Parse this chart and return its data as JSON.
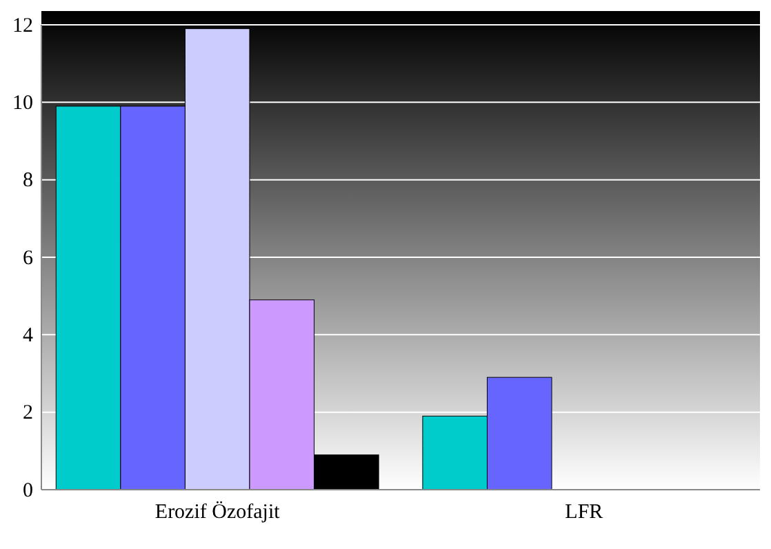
{
  "chart_data": {
    "type": "bar",
    "categories": [
      "Erozif Özofajit",
      "LFR"
    ],
    "series": [
      {
        "color": "#00cccc",
        "values": [
          9.9,
          1.9
        ]
      },
      {
        "color": "#6666ff",
        "values": [
          9.9,
          2.9
        ]
      },
      {
        "color": "#ccccff",
        "values": [
          11.9,
          0
        ]
      },
      {
        "color": "#cc99ff",
        "values": [
          4.9,
          0
        ]
      },
      {
        "color": "#000000",
        "values": [
          0.9,
          0
        ]
      }
    ],
    "ylim": [
      0,
      12
    ],
    "yticks": [
      0,
      2,
      4,
      6,
      8,
      10,
      12
    ],
    "grid": "y",
    "legend": false
  }
}
